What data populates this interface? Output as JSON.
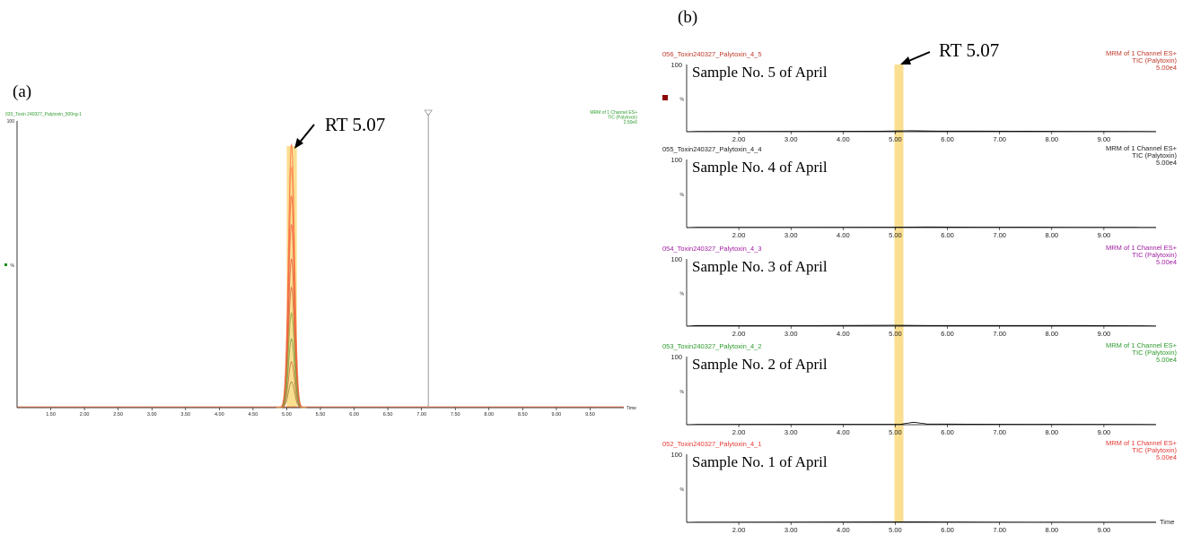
{
  "chart_data": [
    {
      "type": "line",
      "panel": "(a)",
      "header_left": "033_Toxin 240327_Palytoxin_500ng-1",
      "header_right": [
        "MRM of 1 Channel ES+",
        "TIC (Palytoxin)",
        "2.50e6"
      ],
      "header_color": "#2e9b2e",
      "y_top_label": "100",
      "y_mid_label": "%",
      "x_end_label": "Time",
      "xlim": [
        1.0,
        10.0
      ],
      "ylim": [
        0,
        100
      ],
      "x_ticks": [
        "1.50",
        "2.00",
        "2.50",
        "3.00",
        "3.50",
        "4.00",
        "4.50",
        "5.00",
        "5.50",
        "6.00",
        "6.50",
        "7.00",
        "7.50",
        "8.00",
        "8.50",
        "9.00",
        "9.50"
      ],
      "peak_rt": 5.07,
      "highlight": [
        5.0,
        5.15
      ],
      "marker_x": 7.1,
      "peak_traces": [
        {
          "color": "#ff7043",
          "height": 92
        },
        {
          "color": "#ff8a50",
          "height": 84
        },
        {
          "color": "#f4673b",
          "height": 74
        },
        {
          "color": "#ef6c4a",
          "height": 64
        },
        {
          "color": "#e55a3c",
          "height": 52
        },
        {
          "color": "#d86a3a",
          "height": 42
        },
        {
          "color": "#8aaa3c",
          "height": 33
        },
        {
          "color": "#7a9a46",
          "height": 24
        },
        {
          "color": "#c8743a",
          "height": 16
        },
        {
          "color": "#9b8a3a",
          "height": 9
        }
      ],
      "annotation": "RT 5.07"
    },
    {
      "type": "line",
      "panel": "(b)",
      "xlim": [
        1.0,
        10.0
      ],
      "ylim": [
        0,
        100
      ],
      "x_ticks": [
        "2.00",
        "3.00",
        "4.00",
        "5.00",
        "6.00",
        "7.00",
        "8.00",
        "9.00"
      ],
      "x_end_label": "Time",
      "peak_rt": 5.07,
      "annotation": "RT 5.07",
      "subplots": [
        {
          "id": "056_Toxin240327_Palytoxin_4_5",
          "label": "Sample No. 5 of April",
          "color": "#c0392b",
          "right": [
            "MRM of 1 Channel ES+",
            "TIC (Palytoxin)",
            "5.00e4"
          ],
          "y_top": "100",
          "y_mid": "%",
          "noise": [
            [
              1.2,
              0.6
            ],
            [
              4.7,
              0.8
            ],
            [
              5.3,
              1.4
            ],
            [
              5.8,
              0.9
            ],
            [
              6.5,
              1.0
            ],
            [
              7.3,
              0.8
            ],
            [
              8.2,
              0.7
            ],
            [
              9.6,
              0.5
            ]
          ]
        },
        {
          "id": "055_Toxin240327_Palytoxin_4_4",
          "label": "Sample No. 4 of April",
          "color": "#222222",
          "right": [
            "MRM of 1 Channel ES+",
            "TIC (Palytoxin)",
            "5.00e4"
          ],
          "y_top": "100",
          "y_mid": "%",
          "noise": [
            [
              1.2,
              0.4
            ],
            [
              4.9,
              0.7
            ],
            [
              5.6,
              0.9
            ],
            [
              6.6,
              0.6
            ],
            [
              8.4,
              0.5
            ],
            [
              9.6,
              0.4
            ]
          ]
        },
        {
          "id": "054_Toxin240327_Palytoxin_4_3",
          "label": "Sample No. 3 of April",
          "color": "#a020a0",
          "right": [
            "MRM of 1 Channel ES+",
            "TIC (Palytoxin)",
            "5.00e4"
          ],
          "y_top": "100",
          "y_mid": "%",
          "noise": [
            [
              1.2,
              1.0
            ],
            [
              3.0,
              0.8
            ],
            [
              5.0,
              1.3
            ],
            [
              5.6,
              1.0
            ],
            [
              6.8,
              0.9
            ],
            [
              8.5,
              0.9
            ],
            [
              9.6,
              0.7
            ]
          ]
        },
        {
          "id": "053_Toxin240327_Palytoxin_4_2",
          "label": "Sample No. 2 of April",
          "color": "#2e9b2e",
          "right": [
            "MRM of 1 Channel ES+",
            "TIC (Palytoxin)",
            "5.00e4"
          ],
          "y_top": "100",
          "y_mid": "%",
          "noise": [
            [
              1.2,
              0.5
            ],
            [
              5.1,
              0.7
            ],
            [
              5.35,
              3.5
            ],
            [
              5.6,
              1.2
            ],
            [
              6.4,
              0.8
            ],
            [
              8.1,
              0.7
            ],
            [
              9.6,
              0.5
            ]
          ]
        },
        {
          "id": "052_Toxin240327_Palytoxin_4_1",
          "label": "Sample No. 1 of April",
          "color": "#e53935",
          "right": [
            "MRM of 1 Channel ES+",
            "TIC (Palytoxin)",
            "5.00e4"
          ],
          "y_top": "100",
          "y_mid": "%",
          "noise": [
            [
              1.2,
              0.3
            ],
            [
              5.5,
              0.8
            ],
            [
              6.5,
              0.4
            ],
            [
              8.0,
              0.3
            ],
            [
              9.6,
              0.3
            ]
          ]
        }
      ]
    }
  ],
  "colors": {
    "highlight": "#f7c948",
    "axis": "#000000",
    "marker": "#9a9a9a"
  }
}
